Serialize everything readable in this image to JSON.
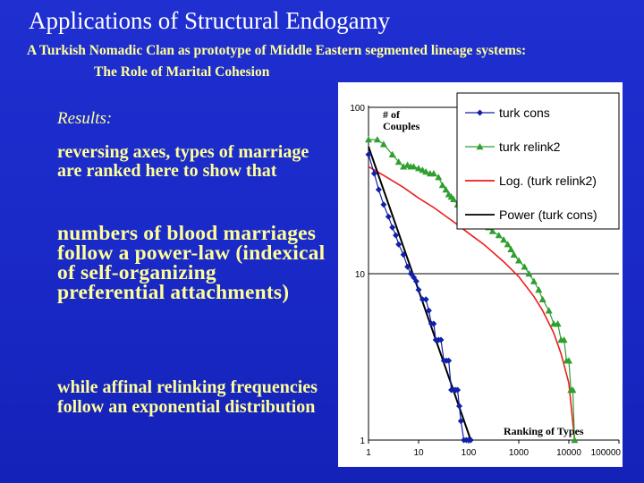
{
  "slide": {
    "title": "Applications of Structural Endogamy",
    "subtitle_line1": "A Turkish Nomadic Clan as prototype of Middle Eastern segmented lineage systems:",
    "subtitle_line2": "The Role of Marital Cohesion",
    "results_label": "Results:",
    "paragraph1": "reversing axes, types of marriage are ranked here to show that",
    "paragraph2": "numbers of blood marriages follow a power-law (indexical of self-organizing preferential attachments)",
    "paragraph3": "while affinal relinking frequencies follow  an exponential distribution"
  },
  "colors": {
    "background": "#1a2ac8",
    "title": "#ffffff",
    "text": "#ffff99",
    "turk_cons": "#1020a8",
    "turk_relink2": "#2fa02f",
    "log_fit": "#ee1c1c",
    "power_fit": "#000000"
  },
  "chart_data": {
    "type": "scatter",
    "x_scale": "log",
    "y_scale": "log",
    "xlim": [
      1,
      100000
    ],
    "ylim": [
      1,
      100
    ],
    "x_ticks": [
      "1",
      "10",
      "100",
      "1000",
      "10000",
      "100000"
    ],
    "y_ticks": [
      "1",
      "10",
      "100"
    ],
    "xlabel": "Ranking of Types",
    "ylabel_line1": "# of",
    "ylabel_line2": "Couples",
    "grid": "horizontal",
    "legend_position": "top-right",
    "series": [
      {
        "name": "turk cons",
        "marker": "diamond",
        "x": [
          1,
          1.3,
          1.6,
          2,
          2.5,
          3,
          3.5,
          4,
          5,
          6,
          7,
          8,
          9,
          10,
          12,
          14,
          16,
          18,
          20,
          22,
          25,
          28,
          32,
          36,
          40,
          45,
          50,
          55,
          60,
          65,
          70,
          80,
          90,
          100,
          110
        ],
        "y": [
          52,
          40,
          32,
          26,
          22,
          19,
          17,
          15,
          13,
          11,
          10,
          9.5,
          9,
          8,
          7,
          7,
          6,
          5,
          5,
          4,
          4,
          4,
          3,
          3,
          3,
          2,
          2,
          2,
          2,
          1.6,
          1.3,
          1,
          1,
          1,
          1
        ]
      },
      {
        "name": "turk relink2",
        "marker": "triangle",
        "x": [
          1,
          1.5,
          2,
          3,
          4,
          5,
          6,
          7,
          8,
          10,
          12,
          14,
          17,
          20,
          25,
          30,
          35,
          40,
          45,
          50,
          60,
          70,
          80,
          90,
          100,
          130,
          160,
          200,
          250,
          300,
          400,
          500,
          600,
          700,
          800,
          1000,
          1300,
          1600,
          2000,
          2500,
          3000,
          4000,
          5000,
          6000,
          7000,
          8000,
          9000,
          10000,
          11000,
          12000,
          13000
        ],
        "y": [
          64,
          64,
          60,
          52,
          47,
          44,
          45,
          44,
          44,
          43,
          42,
          41,
          40,
          40,
          38,
          34,
          32,
          30,
          29,
          28,
          26,
          25,
          24,
          23,
          22,
          21,
          20,
          20,
          19,
          18,
          17,
          16,
          15,
          14,
          13,
          12,
          11,
          10,
          9,
          8,
          7,
          6,
          5,
          5,
          4,
          4,
          3,
          3,
          2,
          2,
          1
        ]
      },
      {
        "name": "Log. (turk relink2)",
        "style": "line",
        "x": [
          1,
          2,
          5,
          10,
          20,
          50,
          100,
          200,
          500,
          1000,
          2000,
          3000,
          5000,
          7000,
          10000,
          13000
        ],
        "y": [
          44,
          39,
          33,
          28.5,
          25,
          20.5,
          17.5,
          15,
          11.8,
          9.6,
          7.3,
          6,
          4.4,
          3.3,
          2.2,
          1
        ]
      },
      {
        "name": "Power (turk cons)",
        "style": "line",
        "x": [
          1,
          110
        ],
        "y": [
          58,
          1
        ]
      }
    ]
  }
}
